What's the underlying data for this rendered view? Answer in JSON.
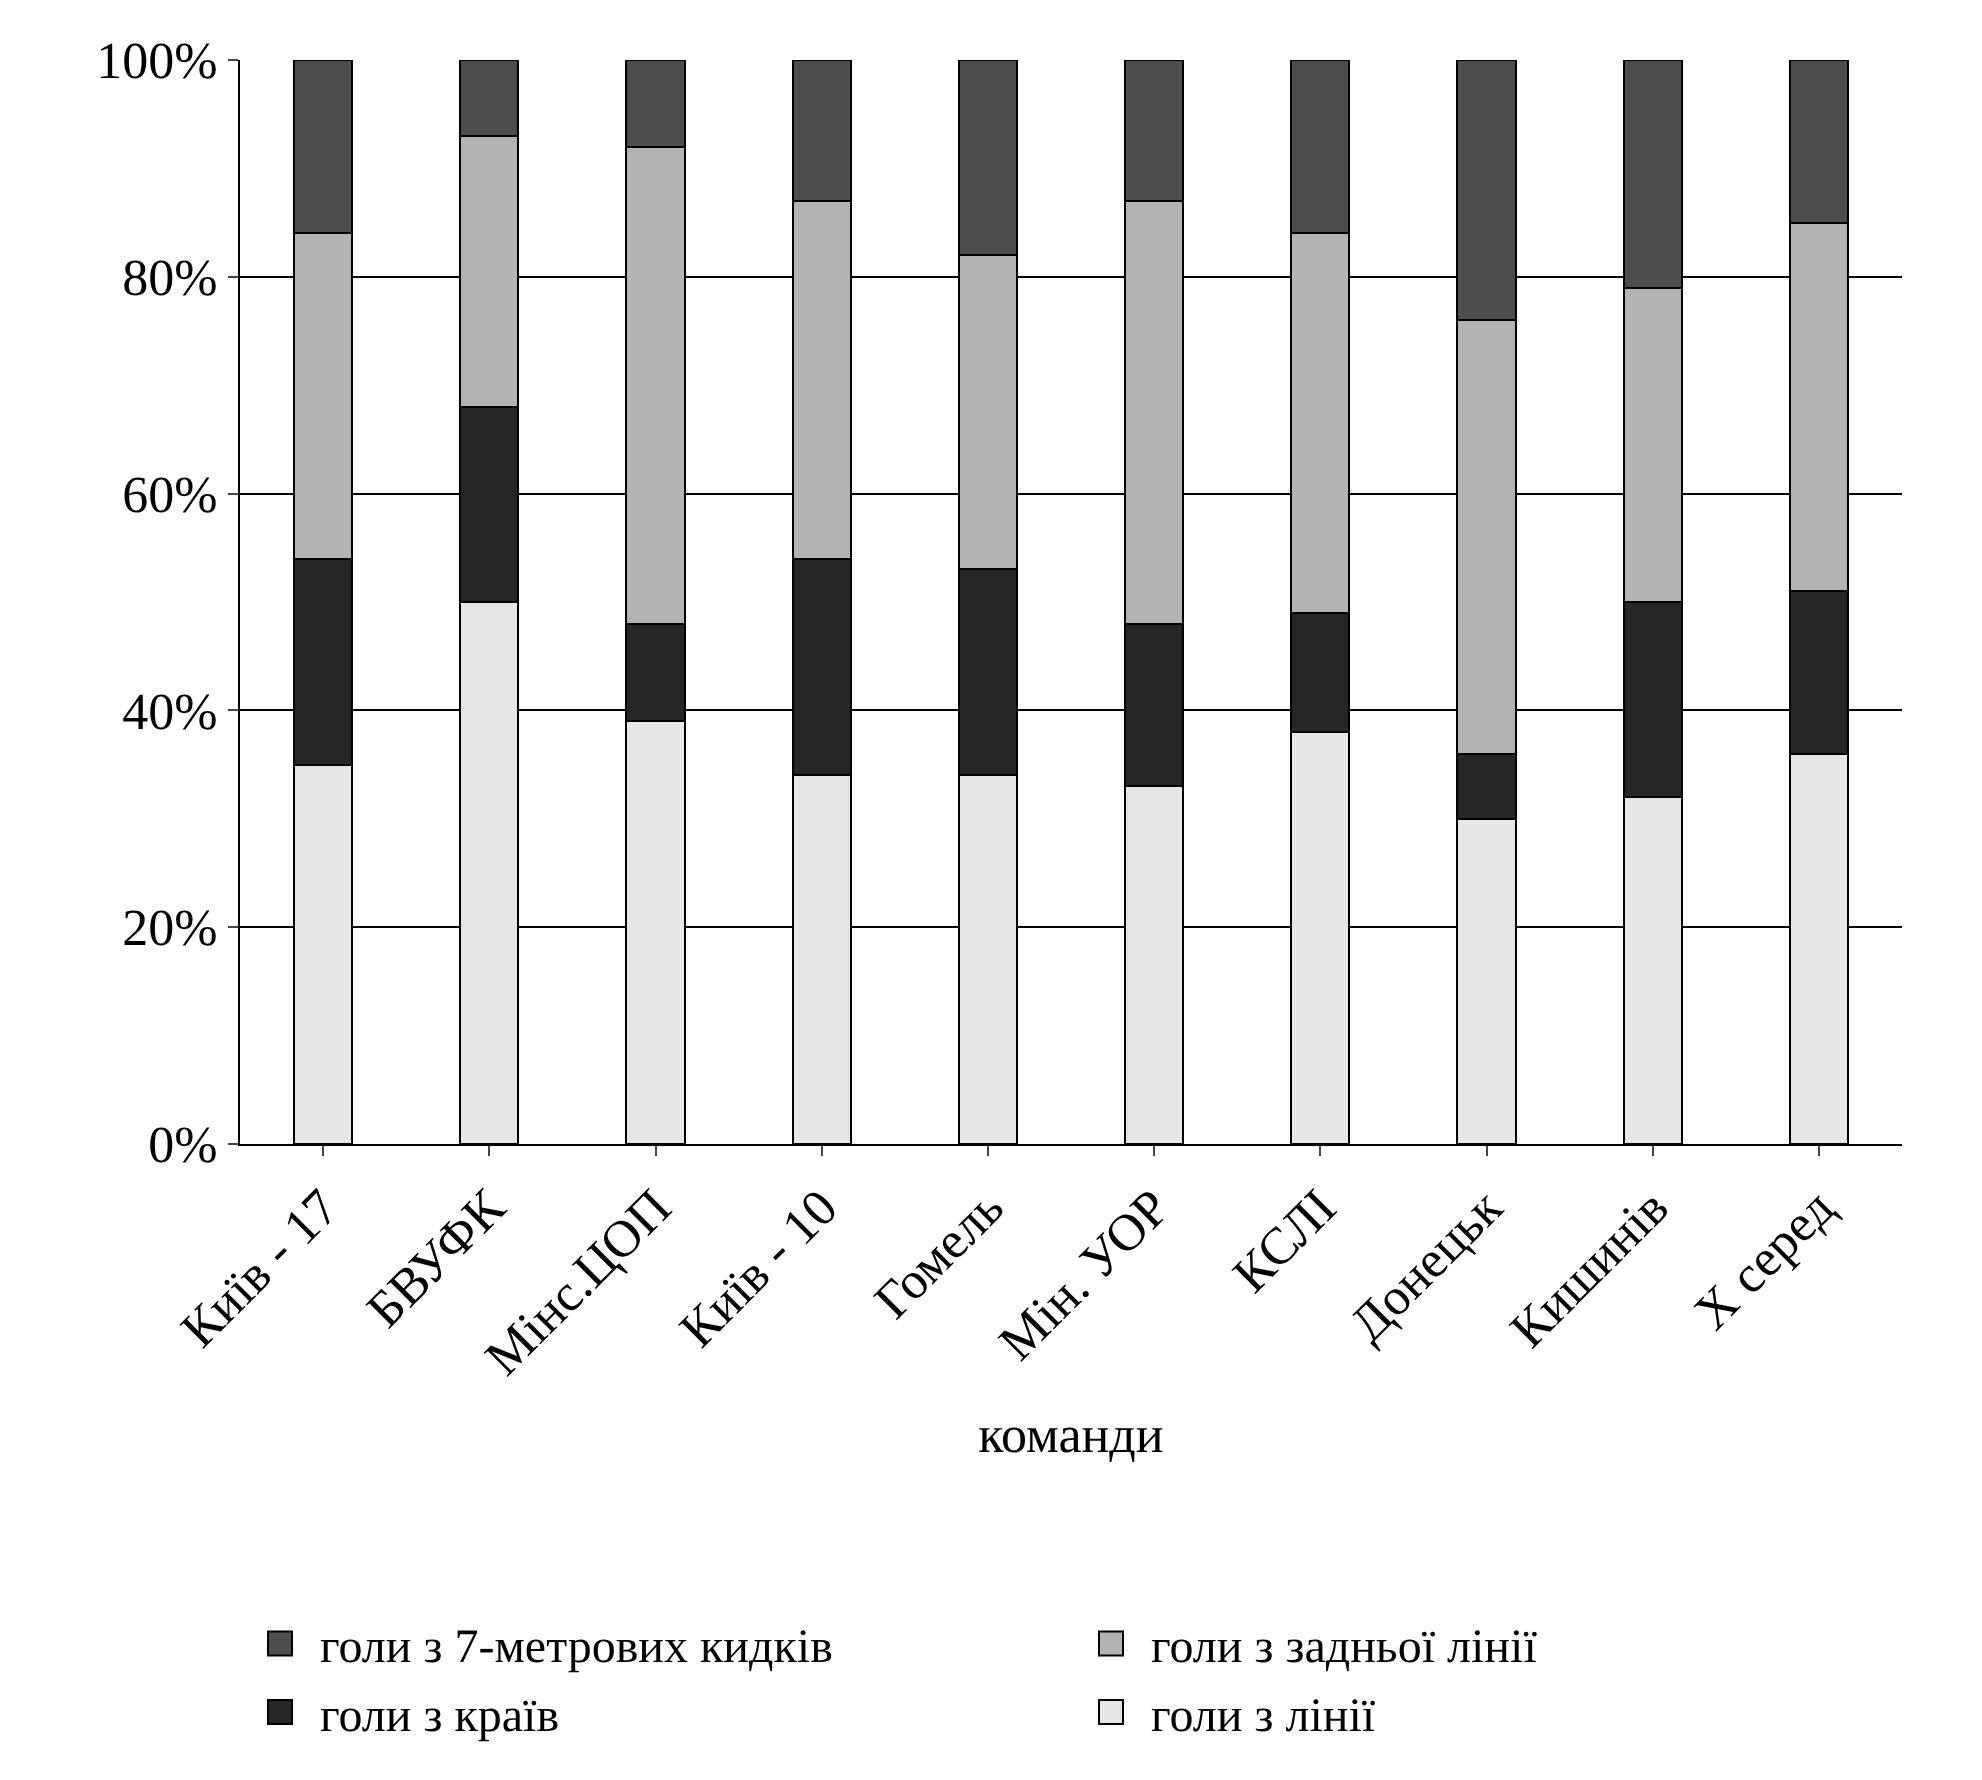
{
  "chart_data": {
    "type": "bar",
    "stacked": true,
    "xlabel": "команди",
    "categories": [
      "Київ - 17",
      "БВУФК",
      "Мінс.ЦОП",
      "Київ - 10",
      "Гомель",
      "Мін. УОР",
      "КСЛІ",
      "Донецьк",
      "Кишинів",
      "Х серед"
    ],
    "series": [
      {
        "name": "голи з лінії",
        "color": "#e6e6e6",
        "values": [
          35,
          50,
          39,
          34,
          34,
          33,
          38,
          30,
          32,
          36
        ]
      },
      {
        "name": "голи з країв",
        "color": "#262626",
        "values": [
          19,
          18,
          9,
          20,
          19,
          15,
          11,
          6,
          18,
          15
        ]
      },
      {
        "name": "голи з задньої лінії",
        "color": "#b3b3b3",
        "values": [
          30,
          25,
          44,
          33,
          29,
          39,
          35,
          40,
          29,
          34
        ]
      },
      {
        "name": "голи з 7-метрових кидків",
        "color": "#4d4d4d",
        "values": [
          16,
          7,
          8,
          13,
          18,
          13,
          16,
          24,
          21,
          15
        ]
      }
    ],
    "ylim": [
      0,
      100
    ],
    "yticks": [
      {
        "value": 0,
        "label": "0%"
      },
      {
        "value": 20,
        "label": "20%"
      },
      {
        "value": 40,
        "label": "40%"
      },
      {
        "value": 60,
        "label": "60%"
      },
      {
        "value": 80,
        "label": "80%"
      },
      {
        "value": 100,
        "label": "100%"
      }
    ],
    "grid": "y",
    "legend": "bottom"
  }
}
